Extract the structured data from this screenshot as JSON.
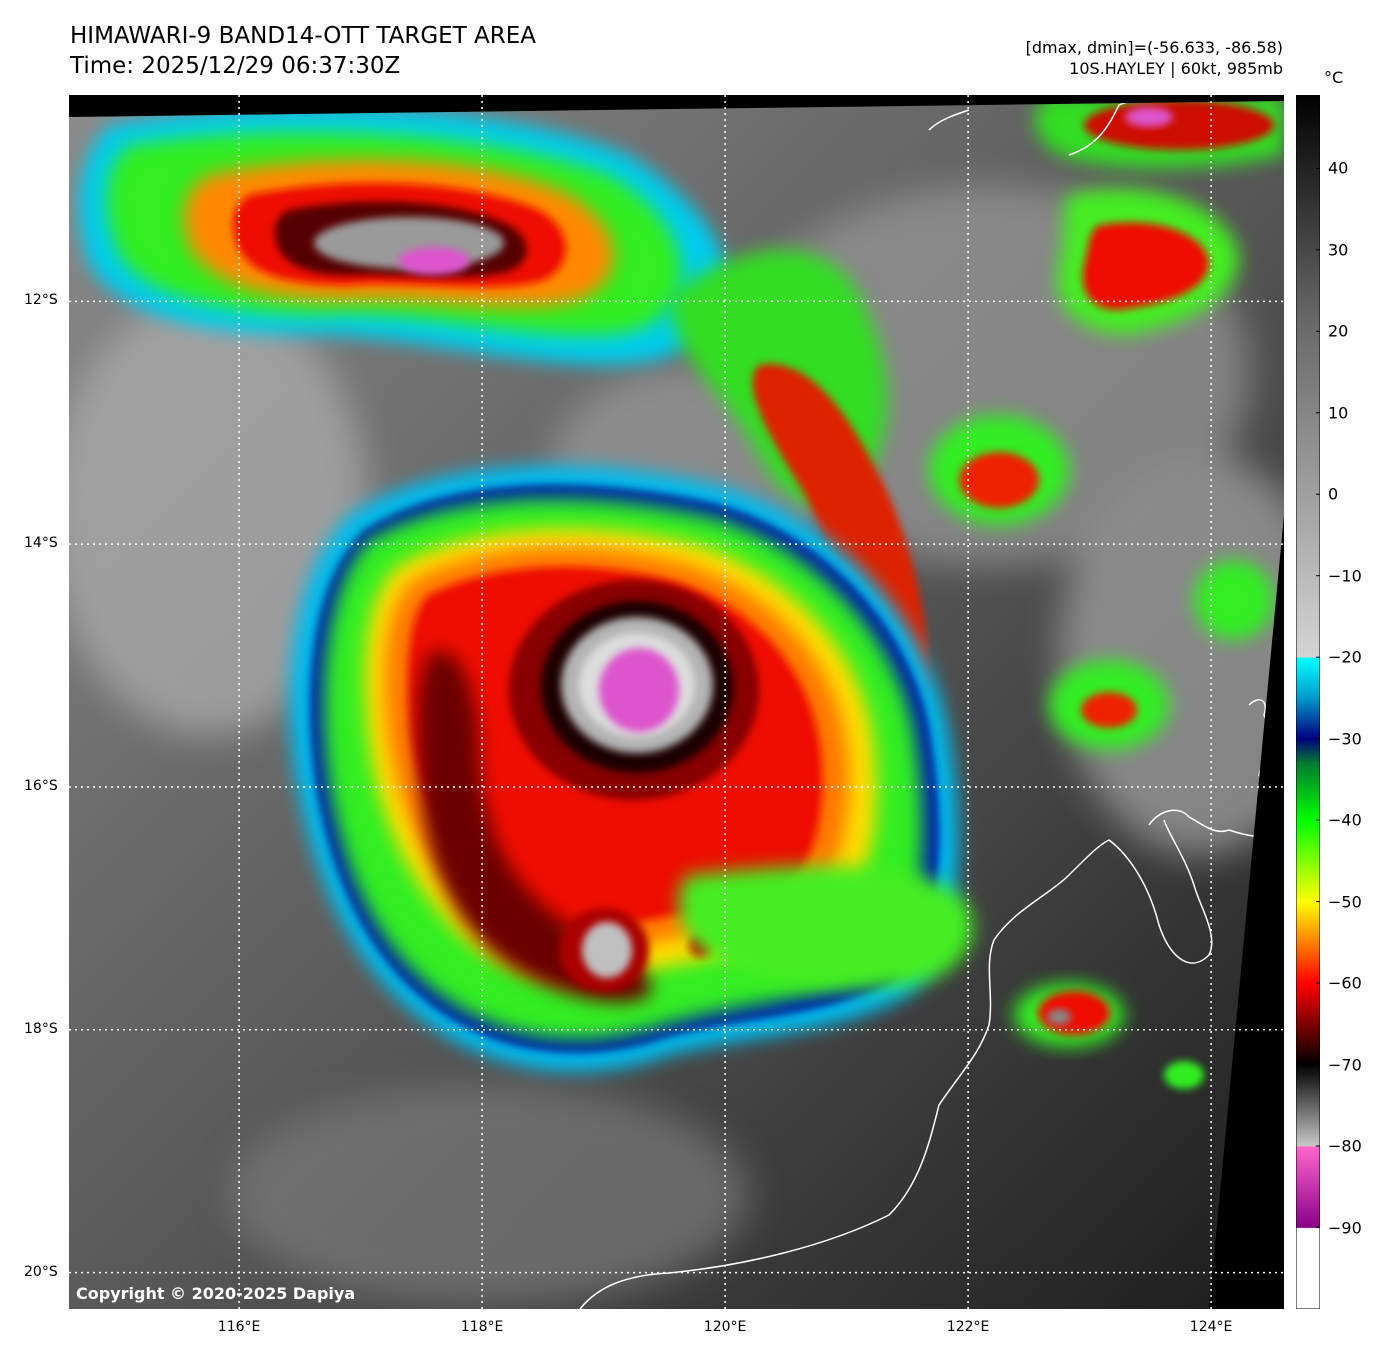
{
  "header": {
    "title_line1": "HIMAWARI-9 BAND14-OTT TARGET AREA",
    "title_line2": "Time: 2025/12/29 06:37:30Z",
    "range_text": "[dmax, dmin]=(-56.633, -86.58)",
    "storm_text": "10S.HAYLEY | 60kt, 985mb"
  },
  "map": {
    "lon_range": [
      114.6,
      124.6
    ],
    "lat_range": [
      -20.3,
      -10.3
    ],
    "lon_ticks": [
      {
        "value": 116,
        "label": "116°E"
      },
      {
        "value": 118,
        "label": "118°E"
      },
      {
        "value": 120,
        "label": "120°E"
      },
      {
        "value": 122,
        "label": "122°E"
      },
      {
        "value": 124,
        "label": "124°E"
      }
    ],
    "lat_ticks": [
      {
        "value": -12,
        "label": "12°S"
      },
      {
        "value": -14,
        "label": "14°S"
      },
      {
        "value": -16,
        "label": "16°S"
      },
      {
        "value": -18,
        "label": "18°S"
      },
      {
        "value": -20,
        "label": "20°S"
      }
    ],
    "gridlines": "dotted white",
    "storm_center": {
      "lon": 119.3,
      "lat": -15.2
    },
    "copyright": "Copyright © 2020-2025 Dapiya"
  },
  "colorbar": {
    "unit": "°C",
    "range": [
      -100,
      49
    ],
    "ticks": [
      {
        "value": 40,
        "label": "40"
      },
      {
        "value": 30,
        "label": "30"
      },
      {
        "value": 20,
        "label": "20"
      },
      {
        "value": 10,
        "label": "10"
      },
      {
        "value": 0,
        "label": "0"
      },
      {
        "value": -10,
        "label": "−10"
      },
      {
        "value": -20,
        "label": "−20"
      },
      {
        "value": -30,
        "label": "−30"
      },
      {
        "value": -40,
        "label": "−40"
      },
      {
        "value": -50,
        "label": "−50"
      },
      {
        "value": -60,
        "label": "−60"
      },
      {
        "value": -70,
        "label": "−70"
      },
      {
        "value": -80,
        "label": "−80"
      },
      {
        "value": -90,
        "label": "−90"
      }
    ],
    "stops": [
      {
        "value": 49,
        "color": "#000000"
      },
      {
        "value": 22,
        "color": "#666666"
      },
      {
        "value": -20,
        "color": "#d4d4d4"
      },
      {
        "value": -20.1,
        "color": "#00ffff"
      },
      {
        "value": -25,
        "color": "#0099cc"
      },
      {
        "value": -30,
        "color": "#000080"
      },
      {
        "value": -33,
        "color": "#007a30"
      },
      {
        "value": -40,
        "color": "#00ff00"
      },
      {
        "value": -50,
        "color": "#ffff00"
      },
      {
        "value": -55,
        "color": "#ff8000"
      },
      {
        "value": -60,
        "color": "#ff0000"
      },
      {
        "value": -70,
        "color": "#000000"
      },
      {
        "value": -80,
        "color": "#c8c8c8"
      },
      {
        "value": -80.1,
        "color": "#ff66cc"
      },
      {
        "value": -90,
        "color": "#880088"
      },
      {
        "value": -90.1,
        "color": "#ffffff"
      },
      {
        "value": -100,
        "color": "#ffffff"
      }
    ]
  }
}
